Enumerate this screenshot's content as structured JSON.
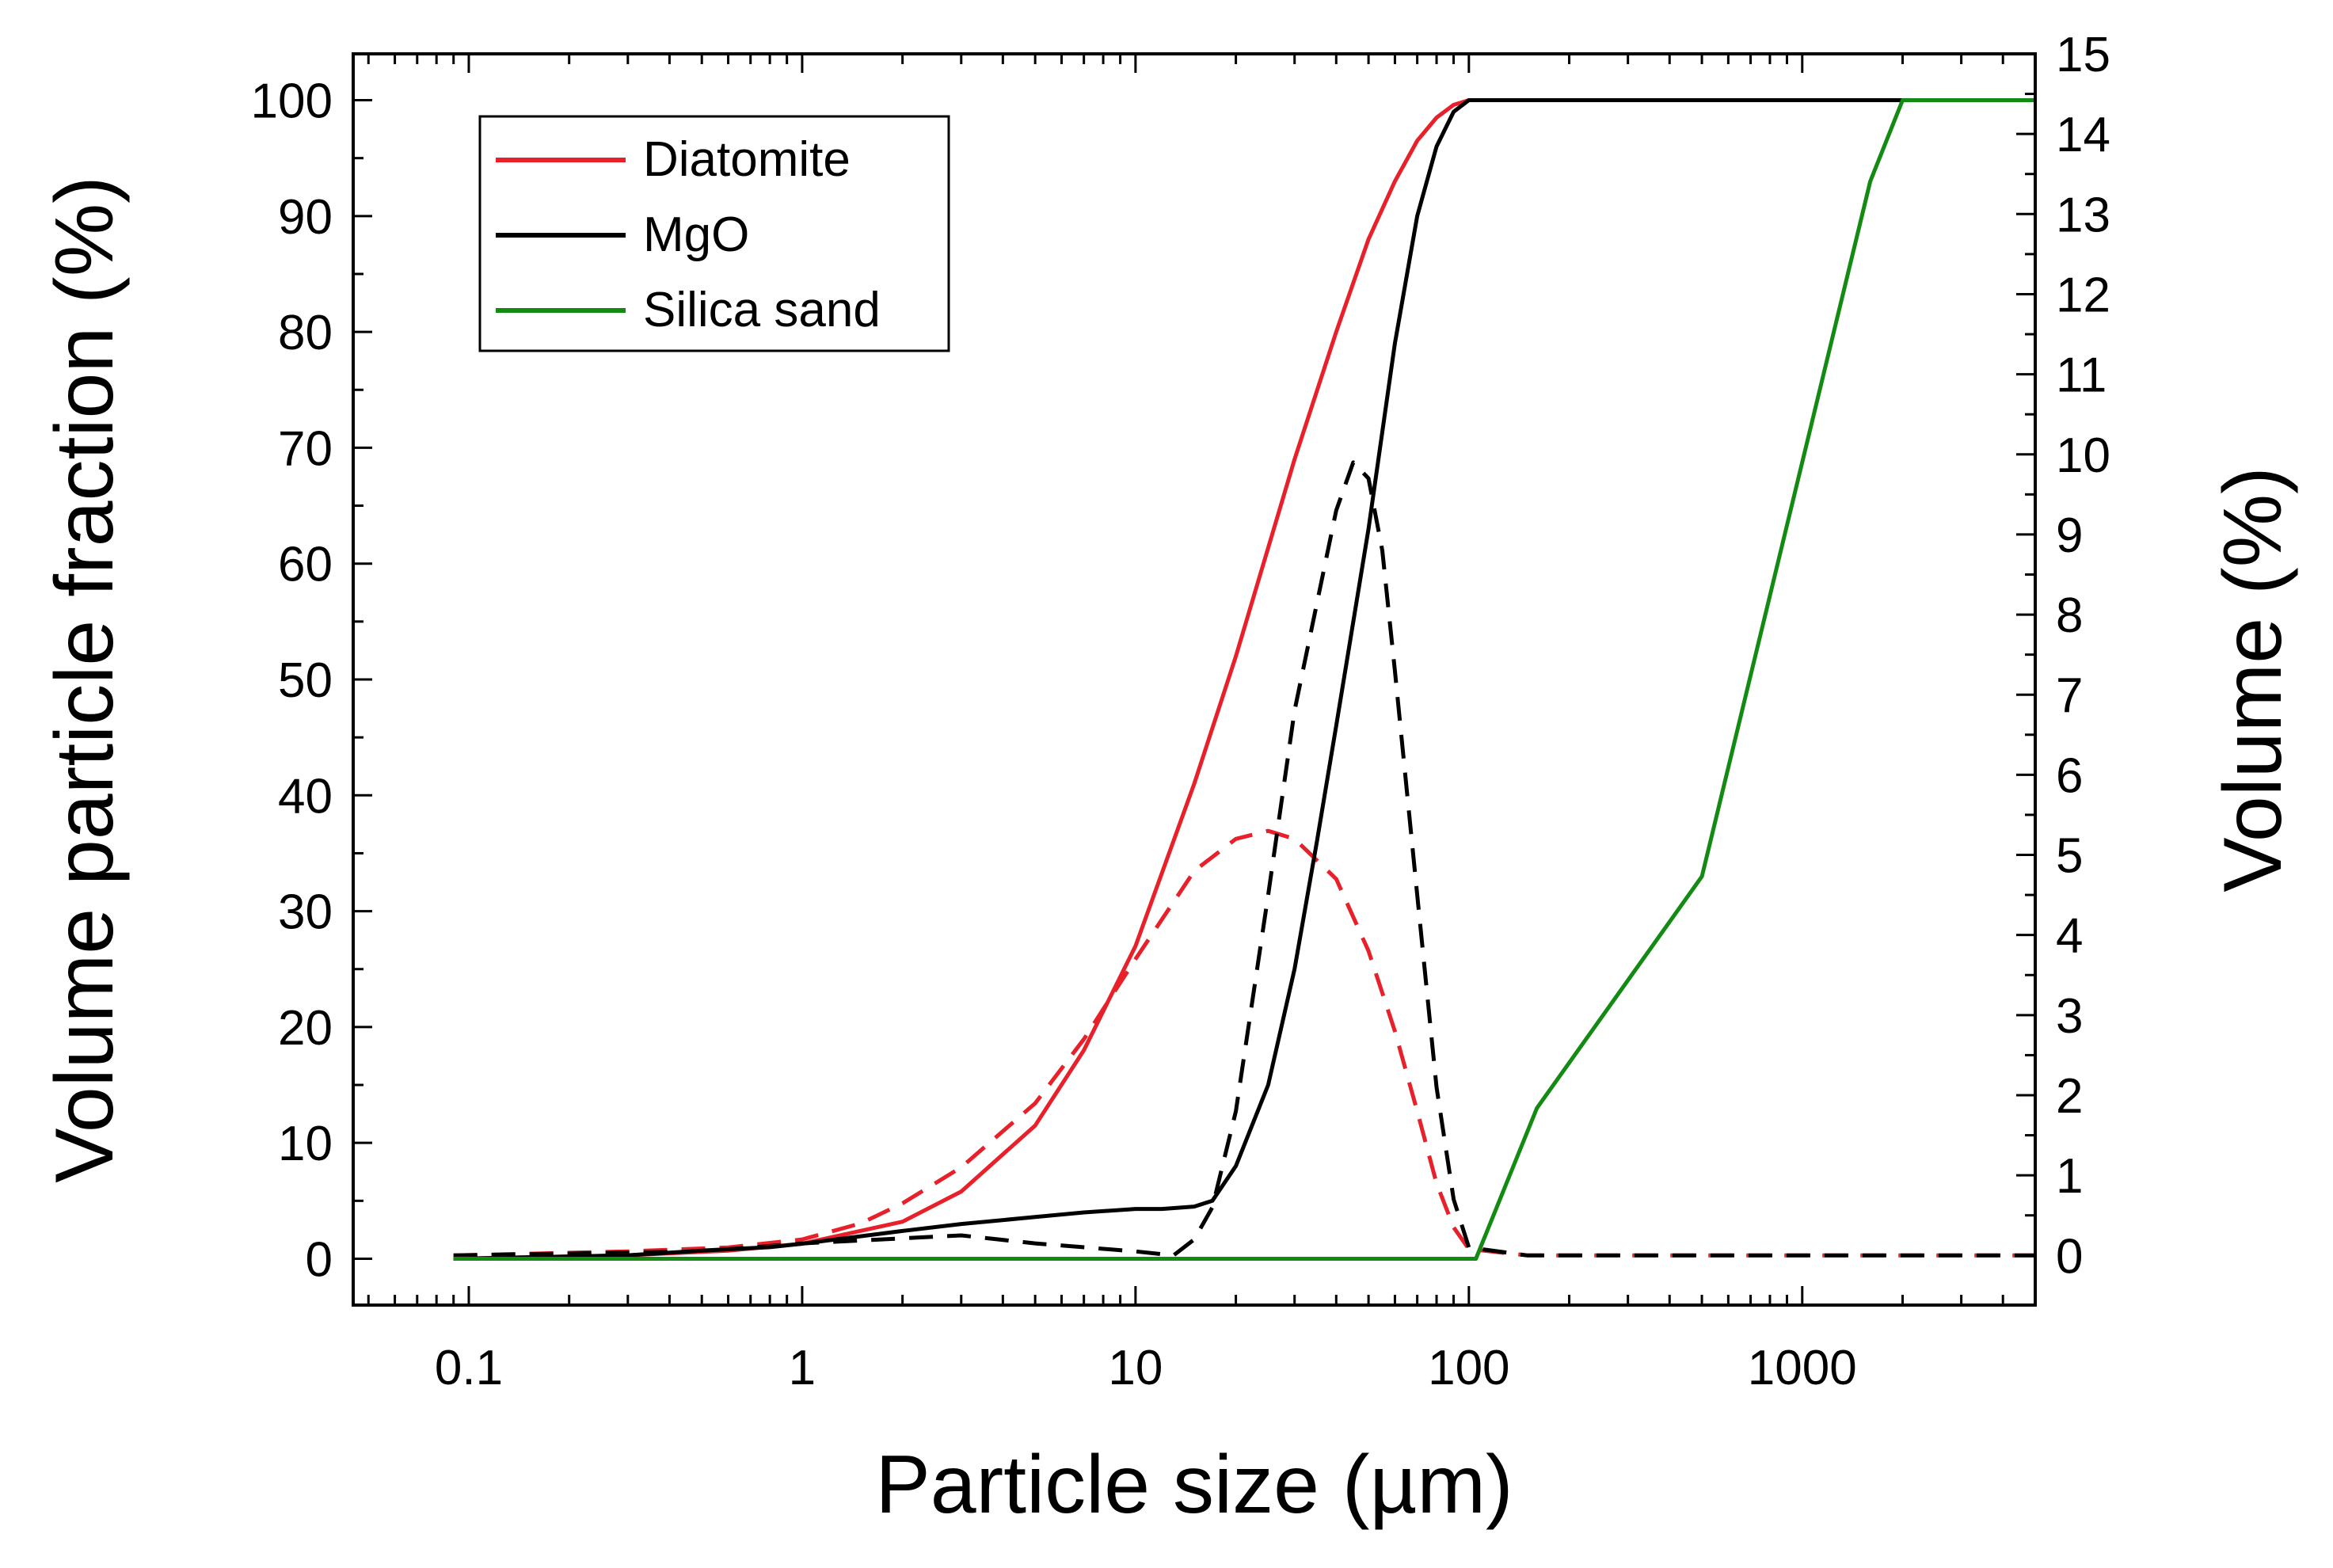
{
  "chart_data": {
    "type": "line",
    "xlabel": "Particle size (µm)",
    "ylabel": "Volume particle fraction (%)",
    "y2label": "Volume (%)",
    "x_scale": "log",
    "xlim": [
      0.045,
      5000
    ],
    "ylim": [
      -4,
      104
    ],
    "y2lim": [
      -0.62,
      15
    ],
    "x_ticks": [
      0.1,
      1,
      10,
      100,
      1000
    ],
    "x_tick_labels": [
      "0.1",
      "1",
      "10",
      "100",
      "1000"
    ],
    "y_ticks": [
      0,
      10,
      20,
      30,
      40,
      50,
      60,
      70,
      80,
      90,
      100
    ],
    "y_tick_labels": [
      "0",
      "10",
      "20",
      "30",
      "40",
      "50",
      "60",
      "70",
      "80",
      "90",
      "100"
    ],
    "y2_ticks": [
      0,
      1,
      2,
      3,
      4,
      5,
      6,
      7,
      8,
      9,
      10,
      11,
      12,
      13,
      14,
      15
    ],
    "y2_tick_labels": [
      "0",
      "1",
      "2",
      "3",
      "4",
      "5",
      "6",
      "7",
      "8",
      "9",
      "10",
      "11",
      "12",
      "13",
      "14",
      "15"
    ],
    "legend": {
      "position": "top-left",
      "entries": [
        {
          "label": "Diatomite",
          "color": "#e8202a"
        },
        {
          "label": "MgO",
          "color": "#000000"
        },
        {
          "label": "Silica sand",
          "color": "#138b13"
        }
      ]
    },
    "series": [
      {
        "name": "Diatomite cumulative",
        "axis": "left",
        "style": "solid",
        "color": "#e8202a",
        "x": [
          0.09,
          0.3,
          0.6,
          1,
          2,
          3,
          5,
          7,
          10,
          15,
          20,
          30,
          40,
          50,
          60,
          70,
          80,
          90,
          100,
          200,
          1000,
          5000
        ],
        "y": [
          0,
          0.3,
          0.7,
          1.3,
          3.2,
          5.8,
          11.5,
          18,
          27,
          41,
          52,
          69,
          80,
          88,
          93,
          96.5,
          98.5,
          99.6,
          100,
          100,
          100,
          100
        ]
      },
      {
        "name": "MgO cumulative",
        "axis": "left",
        "style": "solid",
        "color": "#000000",
        "x": [
          0.09,
          0.3,
          0.5,
          0.8,
          1,
          2,
          3,
          5,
          7,
          10,
          12,
          15,
          17,
          20,
          25,
          30,
          35,
          40,
          50,
          60,
          70,
          80,
          90,
          100,
          200,
          1000,
          5000
        ],
        "y": [
          0,
          0.3,
          0.7,
          1,
          1.3,
          2.4,
          3,
          3.6,
          4,
          4.3,
          4.3,
          4.5,
          5,
          8,
          15,
          25,
          36,
          46,
          63,
          79,
          90,
          96,
          99,
          100,
          100,
          100,
          100
        ]
      },
      {
        "name": "Silica sand cumulative",
        "axis": "left",
        "style": "solid",
        "color": "#138b13",
        "x": [
          0.09,
          100,
          105,
          160,
          500,
          1600,
          2000,
          5000
        ],
        "y": [
          0,
          0,
          0,
          13,
          33,
          93,
          100,
          100
        ]
      },
      {
        "name": "Diatomite volume",
        "axis": "right",
        "style": "dashed",
        "color": "#e8202a",
        "x": [
          0.09,
          0.3,
          0.6,
          1,
          1.5,
          2,
          3,
          5,
          7,
          10,
          15,
          20,
          25,
          30,
          40,
          50,
          60,
          70,
          80,
          90,
          100,
          150,
          5000
        ],
        "y": [
          0,
          0.05,
          0.1,
          0.2,
          0.4,
          0.65,
          1.1,
          1.9,
          2.7,
          3.7,
          4.8,
          5.2,
          5.3,
          5.2,
          4.7,
          3.8,
          2.8,
          1.8,
          0.9,
          0.35,
          0.08,
          0,
          0
        ]
      },
      {
        "name": "MgO volume",
        "axis": "right",
        "style": "dashed",
        "color": "#000000",
        "x": [
          0.09,
          0.5,
          1,
          3,
          5,
          10,
          13,
          15,
          17,
          20,
          25,
          30,
          40,
          45,
          50,
          55,
          60,
          70,
          80,
          90,
          100,
          150,
          5000
        ],
        "y": [
          0,
          0.05,
          0.15,
          0.25,
          0.15,
          0.05,
          0,
          0.2,
          0.6,
          1.8,
          4.5,
          6.8,
          9.3,
          9.9,
          9.7,
          8.8,
          7.3,
          4.5,
          2.1,
          0.7,
          0.1,
          0,
          0
        ]
      }
    ]
  }
}
